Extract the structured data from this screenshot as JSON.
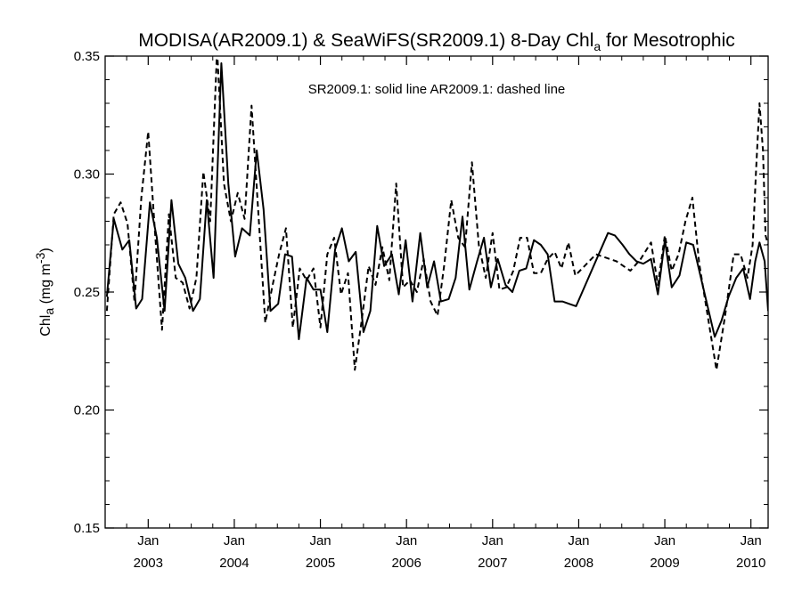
{
  "chart_data": {
    "type": "line",
    "title_main": "MODISA(AR2009.1) & SeaWiFS(SR2009.1) 8-Day Chl",
    "title_sub": "a",
    "title_tail": " for Mesotrophic",
    "ylabel_main": "Chl",
    "ylabel_sub": "a",
    "ylabel_unit_pre": " (mg m",
    "ylabel_unit_sup": "-3",
    "ylabel_unit_post": ")",
    "annotation": "SR2009.1: solid line   AR2009.1: dashed line",
    "ylim": [
      0.15,
      0.35
    ],
    "xlim": [
      2002.5,
      2010.2
    ],
    "y_ticks": [
      0.15,
      0.2,
      0.25,
      0.3,
      0.35
    ],
    "y_tick_labels": [
      "0.15",
      "0.20",
      "0.25",
      "0.30",
      "0.35"
    ],
    "x_ticks": [
      {
        "x": 2003.0,
        "month": "Jan",
        "year": "2003"
      },
      {
        "x": 2004.0,
        "month": "Jan",
        "year": "2004"
      },
      {
        "x": 2005.0,
        "month": "Jan",
        "year": "2005"
      },
      {
        "x": 2006.0,
        "month": "Jan",
        "year": "2006"
      },
      {
        "x": 2007.0,
        "month": "Jan",
        "year": "2007"
      },
      {
        "x": 2008.0,
        "month": "Jan",
        "year": "2008"
      },
      {
        "x": 2009.0,
        "month": "Jan",
        "year": "2009"
      },
      {
        "x": 2010.0,
        "month": "Jan",
        "year": "2010"
      }
    ],
    "series": [
      {
        "style": "solid",
        "x": [
          2002.52,
          2002.6,
          2002.7,
          2002.78,
          2002.86,
          2002.93,
          2003.02,
          2003.1,
          2003.19,
          2003.27,
          2003.35,
          2003.43,
          2003.52,
          2003.6,
          2003.68,
          2003.76,
          2003.85,
          2003.93,
          2004.01,
          2004.09,
          2004.18,
          2004.26,
          2004.34,
          2004.42,
          2004.51,
          2004.59,
          2004.67,
          2004.75,
          2004.84,
          2004.92,
          2005.0,
          2005.08,
          2005.17,
          2005.25,
          2005.33,
          2005.41,
          2005.5,
          2005.58,
          2005.66,
          2005.74,
          2005.83,
          2005.91,
          2005.99,
          2006.07,
          2006.16,
          2006.24,
          2006.32,
          2006.4,
          2006.49,
          2006.57,
          2006.65,
          2006.73,
          2006.82,
          2006.9,
          2006.98,
          2007.06,
          2007.15,
          2007.23,
          2007.31,
          2007.39,
          2007.48,
          2007.56,
          2007.64,
          2007.72,
          2007.81,
          2007.89,
          2007.97,
          2008.34,
          2008.42,
          2008.51,
          2008.59,
          2008.67,
          2008.75,
          2008.84,
          2008.92,
          2009.0,
          2009.08,
          2009.17,
          2009.25,
          2009.33,
          2009.58,
          2009.66,
          2009.74,
          2009.83,
          2009.91,
          2009.99,
          2010.05,
          2010.1,
          2010.16,
          2010.2
        ],
        "y": [
          0.248,
          0.281,
          0.268,
          0.272,
          0.243,
          0.247,
          0.288,
          0.273,
          0.242,
          0.289,
          0.262,
          0.256,
          0.242,
          0.247,
          0.289,
          0.256,
          0.347,
          0.296,
          0.265,
          0.277,
          0.274,
          0.31,
          0.285,
          0.242,
          0.245,
          0.266,
          0.265,
          0.23,
          0.256,
          0.251,
          0.251,
          0.233,
          0.268,
          0.277,
          0.263,
          0.267,
          0.233,
          0.242,
          0.278,
          0.261,
          0.266,
          0.249,
          0.272,
          0.246,
          0.275,
          0.252,
          0.263,
          0.246,
          0.247,
          0.256,
          0.282,
          0.251,
          0.263,
          0.273,
          0.252,
          0.264,
          0.253,
          0.25,
          0.259,
          0.26,
          0.272,
          0.27,
          0.266,
          0.246,
          0.246,
          0.245,
          0.244,
          0.275,
          0.274,
          0.27,
          0.266,
          0.263,
          0.262,
          0.264,
          0.249,
          0.272,
          0.252,
          0.257,
          0.271,
          0.27,
          0.231,
          0.238,
          0.248,
          0.256,
          0.26,
          0.247,
          0.263,
          0.271,
          0.263,
          0.242
        ]
      },
      {
        "style": "dashed",
        "x": [
          2002.52,
          2002.6,
          2002.68,
          2002.76,
          2002.84,
          2002.92,
          2003.0,
          2003.08,
          2003.16,
          2003.24,
          2003.32,
          2003.4,
          2003.48,
          2003.56,
          2003.64,
          2003.72,
          2003.8,
          2003.88,
          2003.96,
          2004.04,
          2004.12,
          2004.2,
          2004.28,
          2004.36,
          2004.44,
          2004.52,
          2004.6,
          2004.68,
          2004.76,
          2004.84,
          2004.92,
          2005.0,
          2005.08,
          2005.16,
          2005.24,
          2005.32,
          2005.4,
          2005.48,
          2005.56,
          2005.64,
          2005.72,
          2005.8,
          2005.88,
          2005.96,
          2006.04,
          2006.12,
          2006.2,
          2006.28,
          2006.36,
          2006.44,
          2006.52,
          2006.6,
          2006.68,
          2006.76,
          2006.84,
          2006.92,
          2007.0,
          2007.08,
          2007.16,
          2007.24,
          2007.32,
          2007.4,
          2007.48,
          2007.56,
          2007.64,
          2007.72,
          2007.8,
          2007.88,
          2007.96,
          2008.2,
          2008.44,
          2008.6,
          2008.72,
          2008.84,
          2008.92,
          2009.0,
          2009.08,
          2009.16,
          2009.24,
          2009.32,
          2009.4,
          2009.6,
          2009.7,
          2009.8,
          2009.88,
          2009.96,
          2010.02,
          2010.06,
          2010.1,
          2010.14,
          2010.17,
          2010.2
        ],
        "y": [
          0.242,
          0.283,
          0.288,
          0.279,
          0.246,
          0.29,
          0.318,
          0.275,
          0.234,
          0.283,
          0.256,
          0.254,
          0.243,
          0.256,
          0.301,
          0.28,
          0.353,
          0.296,
          0.28,
          0.292,
          0.281,
          0.329,
          0.283,
          0.237,
          0.252,
          0.266,
          0.277,
          0.235,
          0.26,
          0.255,
          0.26,
          0.235,
          0.266,
          0.273,
          0.249,
          0.258,
          0.217,
          0.238,
          0.261,
          0.253,
          0.269,
          0.255,
          0.296,
          0.252,
          0.255,
          0.25,
          0.264,
          0.246,
          0.24,
          0.262,
          0.289,
          0.273,
          0.269,
          0.305,
          0.27,
          0.256,
          0.275,
          0.251,
          0.252,
          0.259,
          0.273,
          0.273,
          0.258,
          0.258,
          0.264,
          0.267,
          0.26,
          0.271,
          0.257,
          0.266,
          0.263,
          0.259,
          0.264,
          0.271,
          0.253,
          0.274,
          0.259,
          0.266,
          0.28,
          0.29,
          0.262,
          0.217,
          0.24,
          0.266,
          0.266,
          0.256,
          0.27,
          0.302,
          0.33,
          0.31,
          0.274,
          0.27
        ]
      }
    ]
  }
}
